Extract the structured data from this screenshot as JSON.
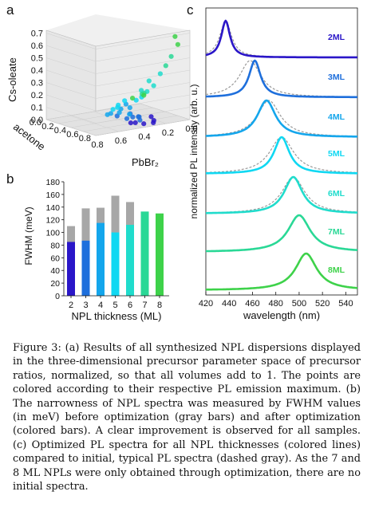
{
  "panel_labels": {
    "a": "a",
    "b": "b",
    "c": "c"
  },
  "caption": "Figure 3: (a) Results of all synthesized NPL dispersions displayed in the three-dimensional precursor parameter space of precursor ratios, normalized, so that all volumes add to 1. The points are colored according to their respective PL emission maximum. (b) The narrowness of NPL spectra was measured by FWHM values (in meV) before optimization (gray bars) and after optimization (colored bars). A clear improvement is observed for all samples. (c) Optimized PL spectra for all NPL thicknesses (colored lines) compared to initial, typical PL spectra (dashed gray). As the 7 and 8 ML NPLs were only obtained through optimization, there are no initial spectra.",
  "colors": {
    "2ML": "#2a16c8",
    "3ML": "#1e6fdc",
    "4ML": "#14a6ec",
    "5ML": "#10d8f2",
    "6ML": "#20dccc",
    "7ML": "#2ad896",
    "8ML": "#3ed24a",
    "initial": "#9a9a9a"
  },
  "chart_data": [
    {
      "panel": "a",
      "type": "scatter",
      "axes_3d": {
        "z": {
          "label": "Cs-oleate",
          "ticks": [
            "0.0",
            "0.1",
            "0.2",
            "0.3",
            "0.4",
            "0.5",
            "0.6",
            "0.7"
          ]
        },
        "y": {
          "label": "acetone",
          "ticks": [
            "0.0",
            "0.2",
            "0.4",
            "0.6",
            "0.8"
          ]
        },
        "x": {
          "label": "PbBr₂",
          "ticks": [
            "0.8",
            "0.6",
            "0.4",
            "0.2",
            "0.0"
          ]
        }
      },
      "points": [
        {
          "acetone": 0.02,
          "pbbr2": 0.3,
          "cs": 0.02,
          "ml": "2ML"
        },
        {
          "acetone": 0.05,
          "pbbr2": 0.28,
          "cs": 0.03,
          "ml": "2ML"
        },
        {
          "acetone": 0.08,
          "pbbr2": 0.35,
          "cs": 0.01,
          "ml": "2ML"
        },
        {
          "acetone": 0.12,
          "pbbr2": 0.4,
          "cs": 0.02,
          "ml": "2ML"
        },
        {
          "acetone": 0.15,
          "pbbr2": 0.25,
          "cs": 0.04,
          "ml": "2ML"
        },
        {
          "acetone": 0.1,
          "pbbr2": 0.45,
          "cs": 0.03,
          "ml": "2ML"
        },
        {
          "acetone": 0.18,
          "pbbr2": 0.33,
          "cs": 0.02,
          "ml": "3ML"
        },
        {
          "acetone": 0.2,
          "pbbr2": 0.38,
          "cs": 0.05,
          "ml": "3ML"
        },
        {
          "acetone": 0.25,
          "pbbr2": 0.3,
          "cs": 0.03,
          "ml": "3ML"
        },
        {
          "acetone": 0.22,
          "pbbr2": 0.42,
          "cs": 0.04,
          "ml": "3ML"
        },
        {
          "acetone": 0.28,
          "pbbr2": 0.36,
          "cs": 0.06,
          "ml": "3ML"
        },
        {
          "acetone": 0.3,
          "pbbr2": 0.28,
          "cs": 0.02,
          "ml": "3ML"
        },
        {
          "acetone": 0.32,
          "pbbr2": 0.45,
          "cs": 0.05,
          "ml": "3ML"
        },
        {
          "acetone": 0.35,
          "pbbr2": 0.33,
          "cs": 0.04,
          "ml": "4ML"
        },
        {
          "acetone": 0.38,
          "pbbr2": 0.4,
          "cs": 0.06,
          "ml": "4ML"
        },
        {
          "acetone": 0.4,
          "pbbr2": 0.3,
          "cs": 0.08,
          "ml": "4ML"
        },
        {
          "acetone": 0.42,
          "pbbr2": 0.48,
          "cs": 0.05,
          "ml": "4ML"
        },
        {
          "acetone": 0.45,
          "pbbr2": 0.35,
          "cs": 0.07,
          "ml": "4ML"
        },
        {
          "acetone": 0.48,
          "pbbr2": 0.42,
          "cs": 0.04,
          "ml": "4ML"
        },
        {
          "acetone": 0.5,
          "pbbr2": 0.28,
          "cs": 0.09,
          "ml": "4ML"
        },
        {
          "acetone": 0.52,
          "pbbr2": 0.38,
          "cs": 0.06,
          "ml": "5ML"
        },
        {
          "acetone": 0.55,
          "pbbr2": 0.32,
          "cs": 0.08,
          "ml": "5ML"
        },
        {
          "acetone": 0.58,
          "pbbr2": 0.25,
          "cs": 0.1,
          "ml": "5ML"
        },
        {
          "acetone": 0.6,
          "pbbr2": 0.3,
          "cs": 0.05,
          "ml": "5ML"
        },
        {
          "acetone": 0.45,
          "pbbr2": 0.22,
          "cs": 0.12,
          "ml": "5ML"
        },
        {
          "acetone": 0.4,
          "pbbr2": 0.2,
          "cs": 0.15,
          "ml": "5ML"
        },
        {
          "acetone": 0.35,
          "pbbr2": 0.18,
          "cs": 0.2,
          "ml": "6ML"
        },
        {
          "acetone": 0.3,
          "pbbr2": 0.15,
          "cs": 0.25,
          "ml": "6ML"
        },
        {
          "acetone": 0.28,
          "pbbr2": 0.2,
          "cs": 0.3,
          "ml": "6ML"
        },
        {
          "acetone": 0.25,
          "pbbr2": 0.12,
          "cs": 0.35,
          "ml": "6ML"
        },
        {
          "acetone": 0.5,
          "pbbr2": 0.15,
          "cs": 0.18,
          "ml": "6ML"
        },
        {
          "acetone": 0.55,
          "pbbr2": 0.1,
          "cs": 0.14,
          "ml": "7ML"
        },
        {
          "acetone": 0.2,
          "pbbr2": 0.1,
          "cs": 0.42,
          "ml": "7ML"
        },
        {
          "acetone": 0.15,
          "pbbr2": 0.08,
          "cs": 0.5,
          "ml": "7ML"
        },
        {
          "acetone": 0.62,
          "pbbr2": 0.08,
          "cs": 0.12,
          "ml": "7ML"
        },
        {
          "acetone": 0.1,
          "pbbr2": 0.05,
          "cs": 0.6,
          "ml": "8ML"
        },
        {
          "acetone": 0.65,
          "pbbr2": 0.05,
          "cs": 0.1,
          "ml": "8ML"
        },
        {
          "acetone": 0.05,
          "pbbr2": 0.1,
          "cs": 0.68,
          "ml": "8ML"
        },
        {
          "acetone": 0.7,
          "pbbr2": 0.12,
          "cs": 0.08,
          "ml": "8ML"
        }
      ]
    },
    {
      "panel": "b",
      "type": "bar",
      "categories": [
        "2",
        "3",
        "4",
        "5",
        "6",
        "7",
        "8"
      ],
      "series": [
        {
          "name": "before optimization",
          "values": [
            110,
            138,
            139,
            158,
            148,
            null,
            null
          ]
        },
        {
          "name": "after optimization",
          "values": [
            85,
            87,
            115,
            100,
            112,
            133,
            130
          ]
        }
      ],
      "xlabel": "NPL thickness (ML)",
      "ylabel": "FWHM (meV)",
      "ylim": [
        0,
        180
      ],
      "yticks": [
        0,
        20,
        40,
        60,
        80,
        100,
        120,
        140,
        160,
        180
      ]
    },
    {
      "panel": "c",
      "type": "line",
      "xlabel": "wavelength (nm)",
      "ylabel": "normalized PL intensity (arb. u.)",
      "xlim": [
        420,
        550
      ],
      "xticks": [
        420,
        440,
        460,
        480,
        500,
        520,
        540
      ],
      "series": [
        {
          "name": "2ML",
          "peak": 437,
          "fwhm": 9,
          "initial_peak": 437,
          "initial_fwhm": 12
        },
        {
          "name": "3ML",
          "peak": 462,
          "fwhm": 12,
          "initial_peak": 458,
          "initial_fwhm": 22
        },
        {
          "name": "4ML",
          "peak": 472,
          "fwhm": 19,
          "initial_peak": 474,
          "initial_fwhm": 24
        },
        {
          "name": "5ML",
          "peak": 485,
          "fwhm": 16,
          "initial_peak": 485,
          "initial_fwhm": 25
        },
        {
          "name": "6ML",
          "peak": 495,
          "fwhm": 19,
          "initial_peak": 495,
          "initial_fwhm": 24
        },
        {
          "name": "7ML",
          "peak": 500,
          "fwhm": 23,
          "initial_peak": null,
          "initial_fwhm": null
        },
        {
          "name": "8ML",
          "peak": 506,
          "fwhm": 22,
          "initial_peak": null,
          "initial_fwhm": null
        }
      ]
    }
  ]
}
